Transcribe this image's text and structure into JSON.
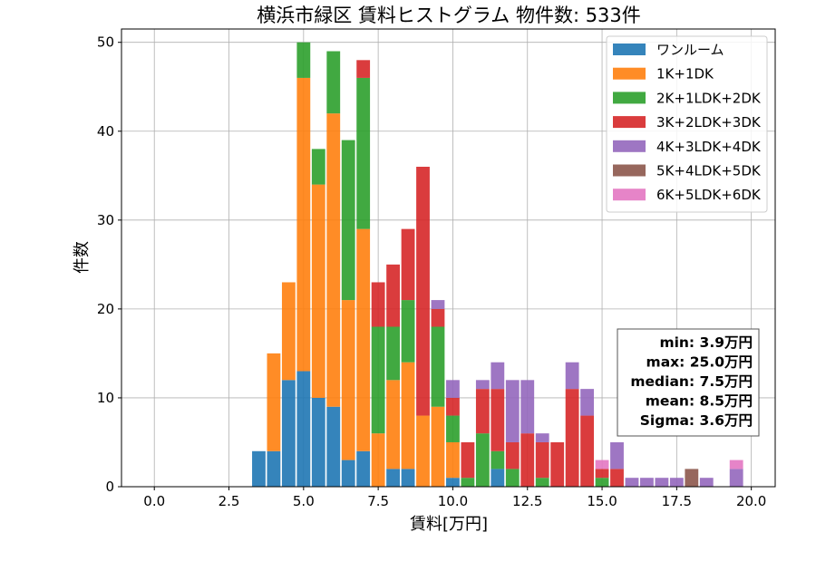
{
  "chart_data": {
    "type": "bar",
    "title": "横浜市緑区 賃料ヒストグラム 物件数: 533件",
    "xlabel": "賃料[万円]",
    "ylabel": "件数",
    "xlim": [
      -1.1,
      20.8
    ],
    "ylim": [
      0,
      51.5
    ],
    "x_ticks": [
      "0.0",
      "2.5",
      "5.0",
      "7.5",
      "10.0",
      "12.5",
      "15.0",
      "17.5",
      "20.0"
    ],
    "y_ticks": [
      "0",
      "10",
      "20",
      "30",
      "40",
      "50"
    ],
    "grid": true,
    "legend_position": "top-right",
    "bin_width": 0.5,
    "bins": [
      3.5,
      4.0,
      4.5,
      5.0,
      5.5,
      6.0,
      6.5,
      7.0,
      7.5,
      8.0,
      8.5,
      9.0,
      9.5,
      10.0,
      10.5,
      11.0,
      11.5,
      12.0,
      12.5,
      13.0,
      13.5,
      14.0,
      14.5,
      15.0,
      15.5,
      16.0,
      16.5,
      17.0,
      17.5,
      18.0,
      18.5,
      19.0,
      19.5
    ],
    "series": [
      {
        "name": "ワンルーム",
        "color": "#1f77b4",
        "values": [
          4,
          4,
          12,
          13,
          10,
          9,
          3,
          4,
          0,
          2,
          2,
          0,
          0,
          1,
          0,
          0,
          2,
          0,
          0,
          0,
          0,
          0,
          0,
          0,
          0,
          0,
          0,
          0,
          0,
          0,
          0,
          0,
          0
        ]
      },
      {
        "name": "1K+1DK",
        "color": "#ff7f0e",
        "values": [
          0,
          11,
          11,
          33,
          24,
          33,
          18,
          25,
          6,
          10,
          12,
          8,
          9,
          4,
          0,
          0,
          0,
          0,
          0,
          0,
          0,
          0,
          0,
          0,
          0,
          0,
          0,
          0,
          0,
          0,
          0,
          0,
          0
        ]
      },
      {
        "name": "2K+1LDK+2DK",
        "color": "#2ca02c",
        "values": [
          0,
          0,
          0,
          4,
          4,
          7,
          18,
          17,
          12,
          6,
          7,
          0,
          9,
          3,
          1,
          6,
          2,
          2,
          0,
          1,
          0,
          0,
          0,
          1,
          0,
          0,
          0,
          0,
          0,
          0,
          0,
          0,
          0
        ]
      },
      {
        "name": "3K+2LDK+3DK",
        "color": "#d62728",
        "values": [
          0,
          0,
          0,
          0,
          0,
          0,
          0,
          2,
          5,
          7,
          8,
          28,
          2,
          2,
          4,
          5,
          7,
          3,
          6,
          4,
          5,
          11,
          8,
          1,
          2,
          0,
          0,
          0,
          0,
          0,
          0,
          0,
          0
        ]
      },
      {
        "name": "4K+3LDK+4DK",
        "color": "#9467bd",
        "values": [
          0,
          0,
          0,
          0,
          0,
          0,
          0,
          0,
          0,
          0,
          0,
          0,
          1,
          2,
          0,
          1,
          3,
          7,
          6,
          1,
          0,
          3,
          3,
          0,
          3,
          1,
          1,
          1,
          1,
          0,
          1,
          0,
          2
        ]
      },
      {
        "name": "5K+4LDK+5DK",
        "color": "#8c564b",
        "values": [
          0,
          0,
          0,
          0,
          0,
          0,
          0,
          0,
          0,
          0,
          0,
          0,
          0,
          0,
          0,
          0,
          0,
          0,
          0,
          0,
          0,
          0,
          0,
          0,
          0,
          0,
          0,
          0,
          0,
          2,
          0,
          0,
          0
        ]
      },
      {
        "name": "6K+5LDK+6DK",
        "color": "#e377c2",
        "values": [
          0,
          0,
          0,
          0,
          0,
          0,
          0,
          0,
          0,
          0,
          0,
          0,
          0,
          0,
          0,
          0,
          0,
          0,
          0,
          0,
          0,
          0,
          0,
          1,
          0,
          0,
          0,
          0,
          0,
          0,
          0,
          0,
          1
        ]
      }
    ],
    "stats": [
      "min: 3.9万円",
      "max: 25.0万円",
      "median: 7.5万円",
      "mean: 8.5万円",
      "Sigma: 3.6万円"
    ]
  }
}
